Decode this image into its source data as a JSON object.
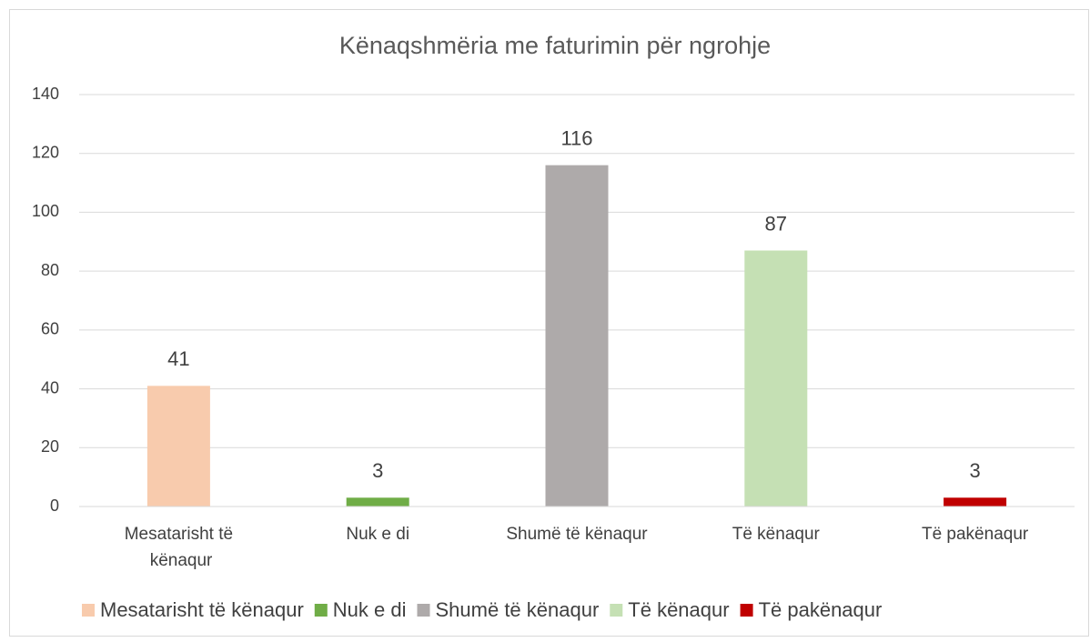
{
  "chart_data": {
    "type": "bar",
    "title": "Kënaqshmëria me faturimin për ngrohje",
    "categories": [
      "Mesatarisht të kënaqur",
      "Nuk e di",
      "Shumë të kënaqur",
      "Të kënaqur",
      "Të pakënaqur"
    ],
    "values": [
      41,
      3,
      116,
      87,
      3
    ],
    "colors": [
      "#f8cbad",
      "#70ad47",
      "#aeaaaa",
      "#c5e0b4",
      "#c00000"
    ],
    "ylim": [
      0,
      140
    ],
    "yticks": [
      0,
      20,
      40,
      60,
      80,
      100,
      120,
      140
    ],
    "grid": true,
    "legend": "bottom"
  }
}
